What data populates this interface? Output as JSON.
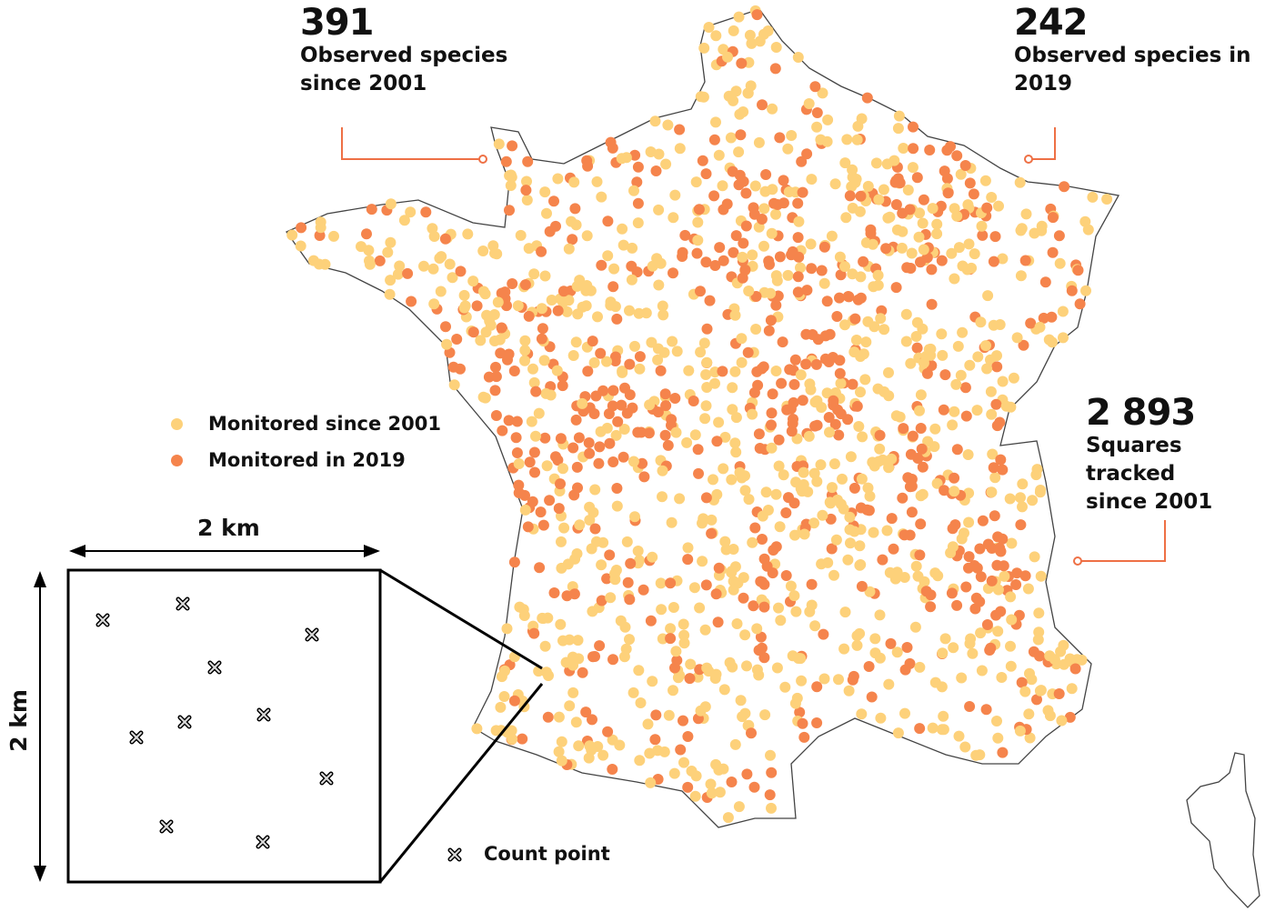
{
  "stats": [
    {
      "number": "391",
      "label_line1": "Observed species",
      "label_line2": "since 2001"
    },
    {
      "number": "242",
      "label_line1": "Observed species in",
      "label_line2": "2019"
    },
    {
      "number": "2 893",
      "label_line1": "Squares tracked",
      "label_line2": "since 2001"
    }
  ],
  "legend": {
    "since_2001": "Monitored since 2001",
    "in_2019": "Monitored in 2019",
    "count_point": "Count point"
  },
  "inset": {
    "width_label": "2 km",
    "height_label": "2 km",
    "count_points": 10
  },
  "colors": {
    "since_2001": "#fdd17a",
    "in_2019": "#f5844c",
    "callout": "#ee7045",
    "border": "#444444"
  },
  "icons": {
    "count_point": "cross-marker-icon",
    "dimension": "double-arrow-icon"
  }
}
